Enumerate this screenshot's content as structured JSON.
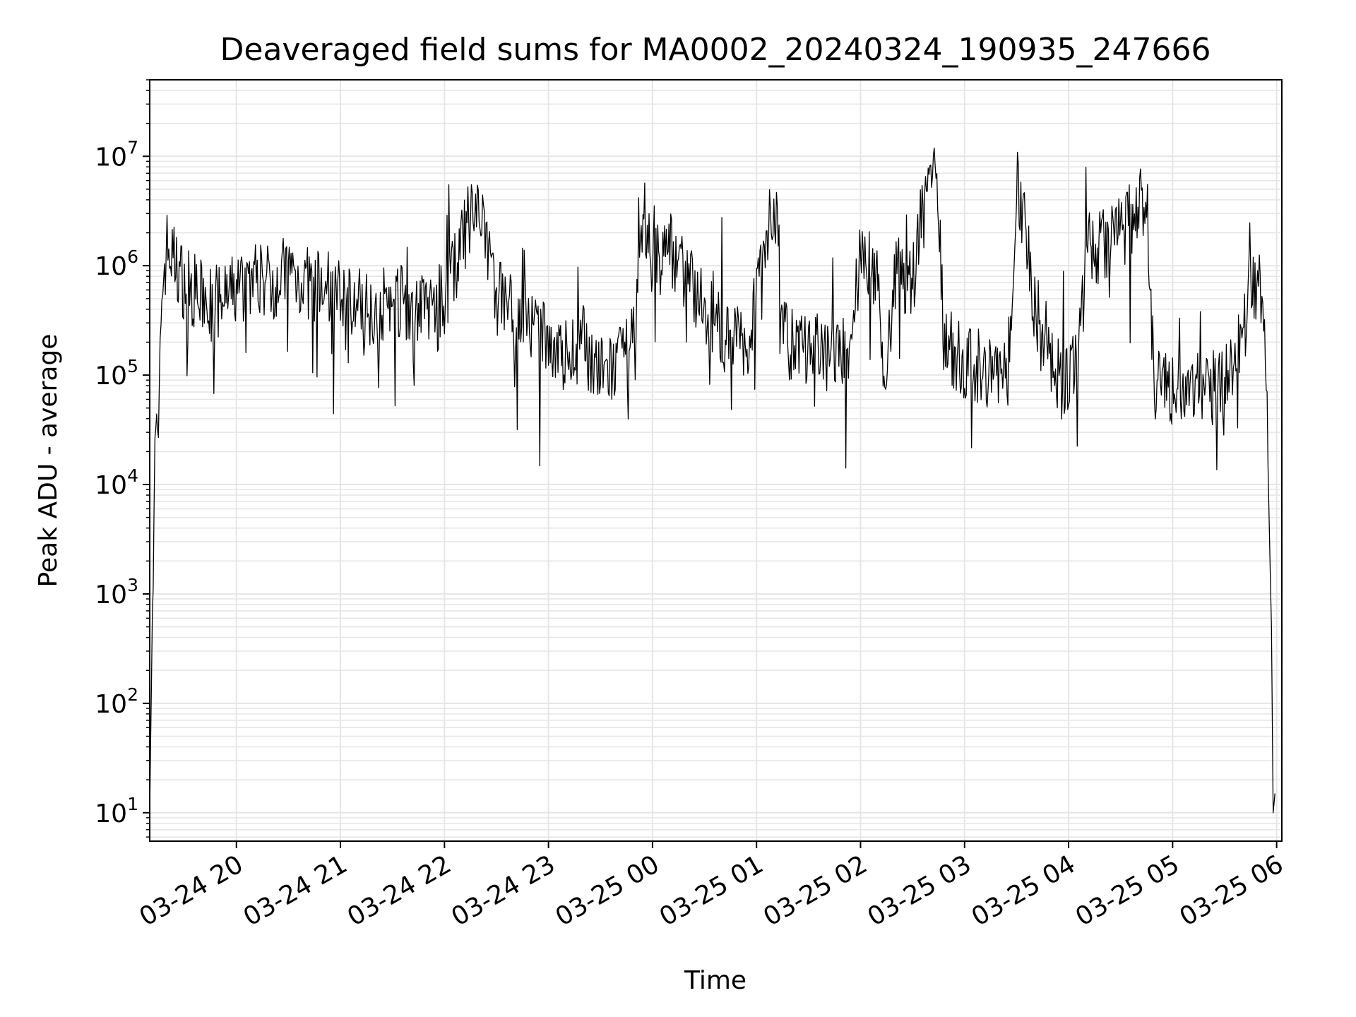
{
  "chart_data": {
    "type": "line",
    "title": "Deaveraged field sums for MA0002_20240324_190935_247666",
    "xlabel": "Time",
    "ylabel": "Peak ADU - average",
    "yscale": "log",
    "ylim": [
      5.5,
      50000000
    ],
    "xlim": [
      "2024-03-24 19:10",
      "2024-03-25 06:03"
    ],
    "grid": true,
    "grid_minor": true,
    "line_color": "#000000",
    "grid_color": "#e6e6e6",
    "x_ticks": [
      {
        "t": "2024-03-24 20:00",
        "label": "03-24 20"
      },
      {
        "t": "2024-03-24 21:00",
        "label": "03-24 21"
      },
      {
        "t": "2024-03-24 22:00",
        "label": "03-24 22"
      },
      {
        "t": "2024-03-24 23:00",
        "label": "03-24 23"
      },
      {
        "t": "2024-03-25 00:00",
        "label": "03-25 00"
      },
      {
        "t": "2024-03-25 01:00",
        "label": "03-25 01"
      },
      {
        "t": "2024-03-25 02:00",
        "label": "03-25 02"
      },
      {
        "t": "2024-03-25 03:00",
        "label": "03-25 03"
      },
      {
        "t": "2024-03-25 04:00",
        "label": "03-25 04"
      },
      {
        "t": "2024-03-25 05:00",
        "label": "03-25 05"
      },
      {
        "t": "2024-03-25 06:00",
        "label": "03-25 06"
      }
    ],
    "y_ticks": [
      {
        "value": 10,
        "base": "10",
        "exp": "1"
      },
      {
        "value": 100,
        "base": "10",
        "exp": "2"
      },
      {
        "value": 1000,
        "base": "10",
        "exp": "3"
      },
      {
        "value": 10000,
        "base": "10",
        "exp": "4"
      },
      {
        "value": 100000,
        "base": "10",
        "exp": "5"
      },
      {
        "value": 1000000,
        "base": "10",
        "exp": "6"
      },
      {
        "value": 10000000,
        "base": "10",
        "exp": "7"
      }
    ],
    "series": [
      {
        "points": [
          [
            "2024-03-24 19:10",
            10
          ],
          [
            "2024-03-24 19:12",
            2500
          ],
          [
            "2024-03-24 19:13",
            35000
          ],
          [
            "2024-03-24 19:15",
            20000
          ],
          [
            "2024-03-24 19:17",
            600000
          ],
          [
            "2024-03-24 19:20",
            1500000
          ],
          [
            "2024-03-24 19:30",
            700000
          ],
          [
            "2024-03-24 19:40",
            500000
          ],
          [
            "2024-03-24 19:50",
            450000
          ],
          [
            "2024-03-24 20:00",
            600000
          ],
          [
            "2024-03-24 20:10",
            800000
          ],
          [
            "2024-03-24 20:20",
            700000
          ],
          [
            "2024-03-24 20:30",
            900000
          ],
          [
            "2024-03-24 20:40",
            700000
          ],
          [
            "2024-03-24 20:50",
            600000
          ],
          [
            "2024-03-24 21:00",
            550000
          ],
          [
            "2024-03-24 21:10",
            450000
          ],
          [
            "2024-03-24 21:20",
            400000
          ],
          [
            "2024-03-24 21:30",
            500000
          ],
          [
            "2024-03-24 21:40",
            450000
          ],
          [
            "2024-03-24 21:50",
            400000
          ],
          [
            "2024-03-24 22:00",
            500000
          ],
          [
            "2024-03-24 22:10",
            1500000
          ],
          [
            "2024-03-24 22:15",
            3000000
          ],
          [
            "2024-03-24 22:20",
            2500000
          ],
          [
            "2024-03-24 22:25",
            1500000
          ],
          [
            "2024-03-24 22:30",
            600000
          ],
          [
            "2024-03-24 22:40",
            400000
          ],
          [
            "2024-03-24 22:50",
            250000
          ],
          [
            "2024-03-24 23:00",
            200000
          ],
          [
            "2024-03-24 23:10",
            150000
          ],
          [
            "2024-03-24 23:20",
            200000
          ],
          [
            "2024-03-24 23:30",
            100000
          ],
          [
            "2024-03-24 23:40",
            120000
          ],
          [
            "2024-03-24 23:50",
            200000
          ],
          [
            "2024-03-24 23:55",
            3000000
          ],
          [
            "2024-03-25 00:00",
            1000000
          ],
          [
            "2024-03-25 00:10",
            1500000
          ],
          [
            "2024-03-25 00:20",
            800000
          ],
          [
            "2024-03-25 00:30",
            400000
          ],
          [
            "2024-03-25 00:40",
            250000
          ],
          [
            "2024-03-25 00:50",
            200000
          ],
          [
            "2024-03-25 00:55",
            180000
          ],
          [
            "2024-03-25 01:00",
            700000
          ],
          [
            "2024-03-25 01:05",
            1500000
          ],
          [
            "2024-03-25 01:08",
            4000000
          ],
          [
            "2024-03-25 01:12",
            2000000
          ],
          [
            "2024-03-25 01:15",
            300000
          ],
          [
            "2024-03-25 01:20",
            180000
          ],
          [
            "2024-03-25 01:30",
            170000
          ],
          [
            "2024-03-25 01:40",
            160000
          ],
          [
            "2024-03-25 01:50",
            150000
          ],
          [
            "2024-03-25 01:55",
            200000
          ],
          [
            "2024-03-25 02:00",
            1500000
          ],
          [
            "2024-03-25 02:10",
            800000
          ],
          [
            "2024-03-25 02:15",
            40000
          ],
          [
            "2024-03-25 02:20",
            900000
          ],
          [
            "2024-03-25 02:30",
            700000
          ],
          [
            "2024-03-25 02:35",
            3000000
          ],
          [
            "2024-03-25 02:40",
            8000000
          ],
          [
            "2024-03-25 02:45",
            5000000
          ],
          [
            "2024-03-25 02:48",
            200000
          ],
          [
            "2024-03-25 03:00",
            130000
          ],
          [
            "2024-03-25 03:10",
            120000
          ],
          [
            "2024-03-25 03:20",
            100000
          ],
          [
            "2024-03-25 03:25",
            100000
          ],
          [
            "2024-03-25 03:30",
            7000000
          ],
          [
            "2024-03-25 03:35",
            2000000
          ],
          [
            "2024-03-25 03:40",
            500000
          ],
          [
            "2024-03-25 03:45",
            200000
          ],
          [
            "2024-03-25 03:55",
            100000
          ],
          [
            "2024-03-25 04:00",
            90000
          ],
          [
            "2024-03-25 04:05",
            150000
          ],
          [
            "2024-03-25 04:10",
            1500000
          ],
          [
            "2024-03-25 04:20",
            1500000
          ],
          [
            "2024-03-25 04:30",
            2000000
          ],
          [
            "2024-03-25 04:40",
            3000000
          ],
          [
            "2024-03-25 04:45",
            5000000
          ],
          [
            "2024-03-25 04:48",
            300000
          ],
          [
            "2024-03-25 04:50",
            80000
          ],
          [
            "2024-03-25 05:00",
            70000
          ],
          [
            "2024-03-25 05:10",
            80000
          ],
          [
            "2024-03-25 05:20",
            75000
          ],
          [
            "2024-03-25 05:30",
            80000
          ],
          [
            "2024-03-25 05:35",
            120000
          ],
          [
            "2024-03-25 05:40",
            250000
          ],
          [
            "2024-03-25 05:45",
            500000
          ],
          [
            "2024-03-25 05:48",
            700000
          ],
          [
            "2024-03-25 05:50",
            650000
          ],
          [
            "2024-03-25 05:53",
            300000
          ],
          [
            "2024-03-25 05:55",
            15000
          ],
          [
            "2024-03-25 05:57",
            500
          ],
          [
            "2024-03-25 05:58",
            10
          ],
          [
            "2024-03-25 05:59",
            15
          ]
        ]
      }
    ]
  }
}
